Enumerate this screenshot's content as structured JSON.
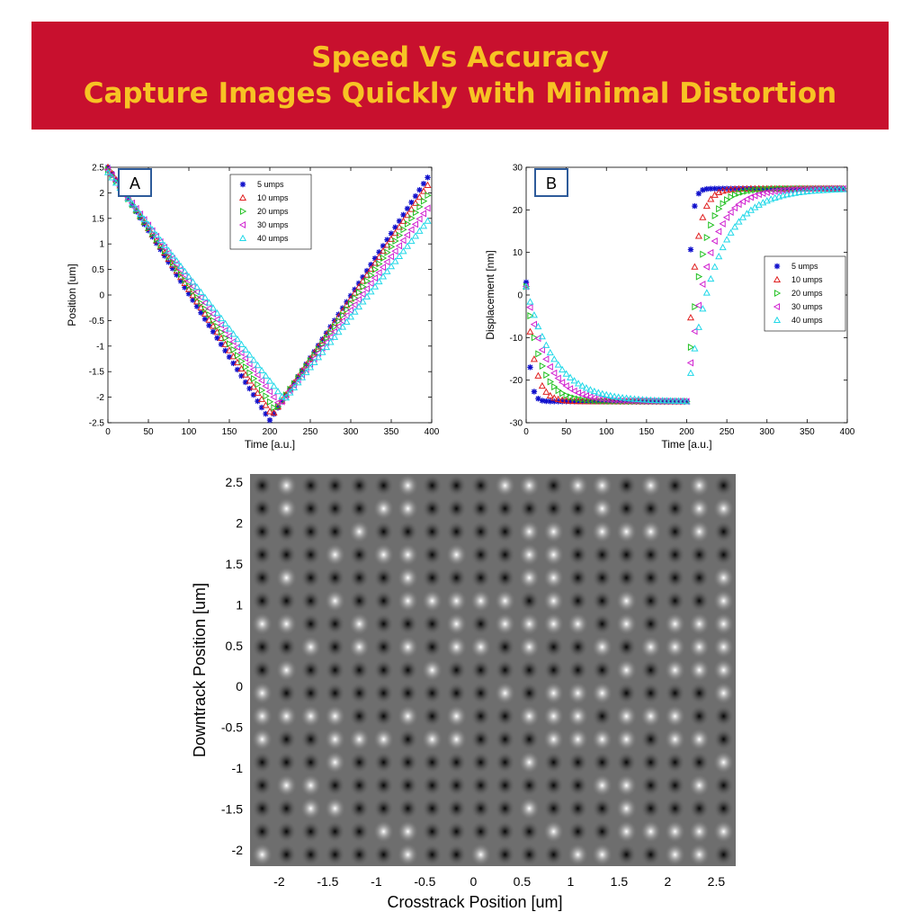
{
  "banner": {
    "line1": "Speed Vs Accuracy",
    "line2": "Capture Images Quickly with Minimal Distortion",
    "bg_color": "#c8102e",
    "text_color": "#f7c324"
  },
  "chart_data": [
    {
      "type": "scatter",
      "panel_label": "A",
      "xlabel": "Time [a.u.]",
      "ylabel": "Position [um]",
      "xlim": [
        0,
        400
      ],
      "ylim": [
        -2.5,
        2.5
      ],
      "xticks": [
        0,
        50,
        100,
        150,
        200,
        250,
        300,
        350,
        400
      ],
      "yticks": [
        -2.5,
        -2,
        -1.5,
        -1,
        -0.5,
        0,
        0.5,
        1,
        1.5,
        2,
        2.5
      ],
      "ytick_labels": [
        "-2.5",
        "-2",
        "-1.5",
        "-1",
        "-0.5",
        "0",
        "0.5",
        "1",
        "1.5",
        "2",
        "2.5"
      ],
      "legend_position": "top-right",
      "x_step": 5,
      "series": [
        {
          "name": "5 umps",
          "marker": "star",
          "color": "#1010cc",
          "x_start": 0,
          "x_end": 395,
          "y_start": 2.5,
          "y_min": -2.45,
          "x_min": 200,
          "y_end": 2.3
        },
        {
          "name": "10 umps",
          "marker": "triangle-up",
          "color": "#e02020",
          "x_start": 0,
          "x_end": 395,
          "y_start": 2.5,
          "y_min": -2.35,
          "x_min": 203,
          "y_end": 2.15
        },
        {
          "name": "20 umps",
          "marker": "triangle-right",
          "color": "#20c020",
          "x_start": 0,
          "x_end": 395,
          "y_start": 2.45,
          "y_min": -2.25,
          "x_min": 207,
          "y_end": 1.95
        },
        {
          "name": "30 umps",
          "marker": "triangle-left",
          "color": "#d020d0",
          "x_start": 0,
          "x_end": 395,
          "y_start": 2.45,
          "y_min": -2.15,
          "x_min": 212,
          "y_end": 1.7
        },
        {
          "name": "40 umps",
          "marker": "triangle-up",
          "color": "#20d8e8",
          "x_start": 0,
          "x_end": 395,
          "y_start": 2.4,
          "y_min": -2.05,
          "x_min": 218,
          "y_end": 1.45
        }
      ]
    },
    {
      "type": "scatter",
      "panel_label": "B",
      "xlabel": "Time [a.u.]",
      "ylabel": "Displacement [nm]",
      "xlim": [
        0,
        400
      ],
      "ylim": [
        -30,
        30
      ],
      "xticks": [
        0,
        50,
        100,
        150,
        200,
        250,
        300,
        350,
        400
      ],
      "yticks": [
        -30,
        -20,
        -10,
        0,
        10,
        20,
        30
      ],
      "ytick_labels": [
        "-30",
        "-20",
        "-10",
        "0",
        "10",
        "20",
        "30"
      ],
      "legend_position": "right",
      "x_step": 5,
      "plateau_low": -25,
      "plateau_high": 25,
      "switch_x": 200,
      "series": [
        {
          "name": "5 umps",
          "marker": "star",
          "color": "#1010cc",
          "start": 3,
          "tau": 4
        },
        {
          "name": "10 umps",
          "marker": "triangle-up",
          "color": "#e02020",
          "start": 2,
          "tau": 10
        },
        {
          "name": "20 umps",
          "marker": "triangle-right",
          "color": "#20c020",
          "start": 2,
          "tau": 17
        },
        {
          "name": "30 umps",
          "marker": "triangle-left",
          "color": "#d020d0",
          "start": 2,
          "tau": 25
        },
        {
          "name": "40 umps",
          "marker": "triangle-up",
          "color": "#20d8e8",
          "start": 2,
          "tau": 35
        }
      ]
    },
    {
      "type": "heatmap",
      "xlabel": "Crosstrack Position [um]",
      "ylabel": "Downtrack Position [um]",
      "xlim": [
        -2.3,
        2.7
      ],
      "ylim": [
        -2.2,
        2.6
      ],
      "xticks": [
        -2,
        -1.5,
        -1,
        -0.5,
        0,
        0.5,
        1,
        1.5,
        2,
        2.5
      ],
      "xtick_labels": [
        "-2",
        "-1.5",
        "-1",
        "-0.5",
        "0",
        "0.5",
        "1",
        "1.5",
        "2",
        "2.5"
      ],
      "yticks": [
        -2,
        -1.5,
        -1,
        -0.5,
        0,
        0.5,
        1,
        1.5,
        2,
        2.5
      ],
      "ytick_labels": [
        "-2",
        "-1.5",
        "-1",
        "-0.5",
        "0",
        "0.5",
        "1",
        "1.5",
        "2",
        "2.5"
      ],
      "colormap": "grayscale",
      "grid_columns": 20,
      "grid_rows": 17
    }
  ]
}
